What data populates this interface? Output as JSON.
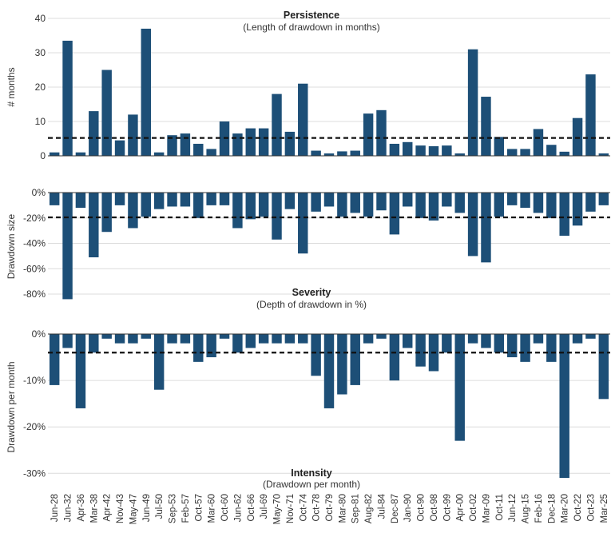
{
  "colors": {
    "bar": "#1d4f77",
    "average_line": "#111111",
    "grid": "#dcdcdc"
  },
  "x_labels": [
    "Jun-28",
    "Jun-32",
    "Apr-36",
    "Mar-38",
    "Apr-42",
    "Nov-43",
    "May-47",
    "Jun-49",
    "Jul-50",
    "Sep-53",
    "Feb-57",
    "Oct-57",
    "Mar-60",
    "Oct-60",
    "Jun-62",
    "Oct-66",
    "Jul-69",
    "May-70",
    "Nov-71",
    "Oct-74",
    "Oct-78",
    "Oct-79",
    "Mar-80",
    "Sep-81",
    "Aug-82",
    "Jul-84",
    "Dec-87",
    "Jan-90",
    "Oct-90",
    "Oct-98",
    "Oct-99",
    "Apr-00",
    "Oct-02",
    "Mar-09",
    "Oct-11",
    "Jun-12",
    "Aug-15",
    "Feb-16",
    "Dec-18",
    "Mar-20",
    "Oct-22",
    "Oct-23",
    "Mar-25"
  ],
  "chart_data": [
    {
      "type": "bar",
      "title": "Persistence",
      "subtitle": "(Length of drawdown in months)",
      "ylabel": "# months",
      "ylim": [
        0,
        40
      ],
      "yticks": [
        0,
        10,
        20,
        30,
        40
      ],
      "ytick_labels": [
        "0",
        "10",
        "20",
        "30",
        "40"
      ],
      "average": 5.2,
      "grid": true,
      "values": [
        1,
        33.5,
        1,
        13,
        25,
        4.5,
        12,
        37,
        1,
        6,
        6.5,
        3.5,
        2,
        10,
        6.5,
        8,
        8,
        18,
        7,
        21,
        1.5,
        0.7,
        1.3,
        1.5,
        12.3,
        13.3,
        3.5,
        4,
        3,
        2.8,
        3,
        0.7,
        31,
        17.2,
        5.5,
        2,
        2,
        7.8,
        3.2,
        1.2,
        11,
        23.7,
        0.7
      ]
    },
    {
      "type": "bar",
      "title": "Severity",
      "subtitle": "(Depth of drawdown in %)",
      "ylabel": "Drawdown size",
      "ylim": [
        -85,
        0
      ],
      "yticks": [
        0,
        -20,
        -40,
        -60,
        -80
      ],
      "ytick_labels": [
        "0%",
        "-20%",
        "-40%",
        "-60%",
        "-80%"
      ],
      "average": -19.5,
      "grid": true,
      "values": [
        -10,
        -84,
        -12,
        -51,
        -31,
        -10,
        -28,
        -19,
        -13,
        -11,
        -11,
        -20,
        -10,
        -10,
        -28,
        -21,
        -19,
        -37,
        -13,
        -48,
        -15,
        -11,
        -19,
        -16,
        -19,
        -14,
        -33,
        -11,
        -20,
        -22,
        -11,
        -16,
        -50,
        -55,
        -19,
        -10,
        -12,
        -16,
        -20,
        -34,
        -26,
        -15,
        -10
      ]
    },
    {
      "type": "bar",
      "title": "Intensity",
      "subtitle": "(Drawdown per month)",
      "ylabel": "Drawdown per month",
      "ylim": [
        -31.5,
        0
      ],
      "yticks": [
        0,
        -10,
        -20,
        -30
      ],
      "ytick_labels": [
        "0%",
        "-10%",
        "-20%",
        "-30%"
      ],
      "average": -4,
      "grid": true,
      "values": [
        -11,
        -3,
        -16,
        -4,
        -1,
        -2,
        -2,
        -1,
        -12,
        -2,
        -2,
        -6,
        -5,
        -1,
        -4,
        -3,
        -2,
        -2,
        -2,
        -2,
        -9,
        -16,
        -13,
        -11,
        -2,
        -1,
        -10,
        -3,
        -7,
        -8,
        -4,
        -23,
        -2,
        -3,
        -4,
        -5,
        -6,
        -2,
        -6,
        -31,
        -2,
        -1,
        -14
      ]
    }
  ]
}
